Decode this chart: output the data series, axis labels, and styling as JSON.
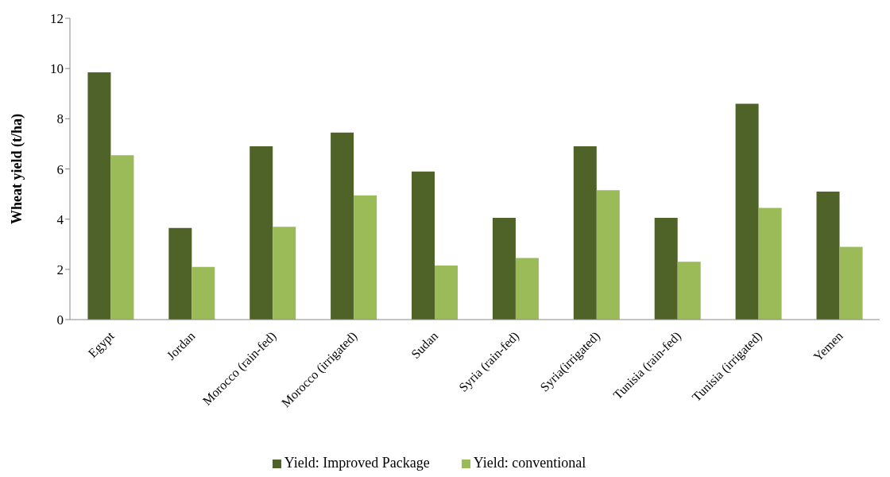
{
  "chart_data": {
    "type": "bar",
    "ylabel": "Wheat yield (t/ha)",
    "categories": [
      "Egypt",
      "Jordan",
      "Morocco (rain-fed)",
      "Morocco (irrigated)",
      "Sudan",
      "Syria (rain-fed)",
      "Syria(irrigated)",
      "Tunisia (rain-fed)",
      "Tunisia (irrigated)",
      "Yemen"
    ],
    "series": [
      {
        "name": "Yield: Improved Package",
        "color": "#4f6228",
        "values": [
          9.85,
          3.65,
          6.9,
          7.45,
          5.9,
          4.05,
          6.9,
          4.05,
          8.6,
          5.1
        ]
      },
      {
        "name": "Yield: conventional",
        "color": "#9bbb59",
        "values": [
          6.55,
          2.1,
          3.7,
          4.95,
          2.15,
          2.45,
          5.15,
          2.3,
          4.45,
          2.9
        ]
      }
    ],
    "ylim": [
      0,
      12
    ],
    "yticks": [
      0,
      2,
      4,
      6,
      8,
      10,
      12
    ],
    "grid": false,
    "legend": "bottom"
  }
}
